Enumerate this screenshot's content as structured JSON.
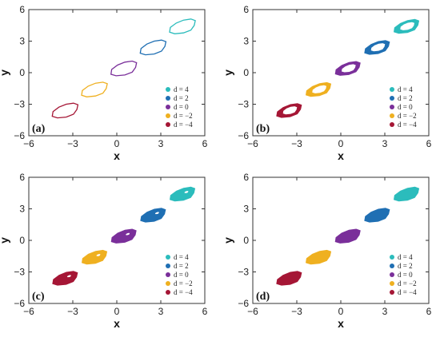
{
  "colors": {
    "d4": "#2bbcbc",
    "d2": "#1f6fb3",
    "d0": "#7a2f9a",
    "dm2": "#efb020",
    "dm4": "#a51635"
  },
  "chart_data": [
    {
      "type": "scatter",
      "panel_label": "(a)",
      "render": "outline",
      "xlabel": "x",
      "ylabel": "y",
      "xlim": [
        -6,
        6
      ],
      "ylim": [
        -6,
        6
      ],
      "xticks": [
        "−6",
        "−3",
        "0",
        "3",
        "6"
      ],
      "yticks": [
        "−6",
        "−3",
        "0",
        "3",
        "6"
      ],
      "legend_position": "bottom-right",
      "series": [
        {
          "name": "d = 4",
          "color_key": "d4",
          "center": [
            4.5,
            4.4
          ]
        },
        {
          "name": "d = 2",
          "color_key": "d2",
          "center": [
            2.5,
            2.4
          ]
        },
        {
          "name": "d = 0",
          "color_key": "d0",
          "center": [
            0.5,
            0.4
          ]
        },
        {
          "name": "d = −2",
          "color_key": "dm2",
          "center": [
            -1.5,
            -1.6
          ]
        },
        {
          "name": "d = −4",
          "color_key": "dm4",
          "center": [
            -3.5,
            -3.6
          ]
        }
      ]
    },
    {
      "type": "scatter",
      "panel_label": "(b)",
      "render": "thick-hole",
      "xlabel": "x",
      "ylabel": "y",
      "xlim": [
        -6,
        6
      ],
      "ylim": [
        -6,
        6
      ],
      "xticks": [
        "−6",
        "−3",
        "0",
        "3",
        "6"
      ],
      "yticks": [
        "−6",
        "−3",
        "0",
        "3",
        "6"
      ],
      "legend_position": "bottom-right",
      "series": [
        {
          "name": "d = 4",
          "color_key": "d4",
          "center": [
            4.5,
            4.4
          ]
        },
        {
          "name": "d = 2",
          "color_key": "d2",
          "center": [
            2.5,
            2.4
          ]
        },
        {
          "name": "d = 0",
          "color_key": "d0",
          "center": [
            0.5,
            0.4
          ]
        },
        {
          "name": "d = −2",
          "color_key": "dm2",
          "center": [
            -1.5,
            -1.6
          ]
        },
        {
          "name": "d = −4",
          "color_key": "dm4",
          "center": [
            -3.5,
            -3.6
          ]
        }
      ]
    },
    {
      "type": "scatter",
      "panel_label": "(c)",
      "render": "filled-small-hole",
      "xlabel": "x",
      "ylabel": "y",
      "xlim": [
        -6,
        6
      ],
      "ylim": [
        -6,
        6
      ],
      "xticks": [
        "−6",
        "−3",
        "0",
        "3",
        "6"
      ],
      "yticks": [
        "−6",
        "−3",
        "0",
        "3",
        "6"
      ],
      "legend_position": "bottom-right",
      "series": [
        {
          "name": "d = 4",
          "color_key": "d4",
          "center": [
            4.5,
            4.4
          ]
        },
        {
          "name": "d = 2",
          "color_key": "d2",
          "center": [
            2.5,
            2.4
          ]
        },
        {
          "name": "d = 0",
          "color_key": "d0",
          "center": [
            0.5,
            0.4
          ]
        },
        {
          "name": "d = −2",
          "color_key": "dm2",
          "center": [
            -1.5,
            -1.6
          ]
        },
        {
          "name": "d = −4",
          "color_key": "dm4",
          "center": [
            -3.5,
            -3.6
          ]
        }
      ]
    },
    {
      "type": "scatter",
      "panel_label": "(d)",
      "render": "filled",
      "xlabel": "x",
      "ylabel": "y",
      "xlim": [
        -6,
        6
      ],
      "ylim": [
        -6,
        6
      ],
      "xticks": [
        "−6",
        "−3",
        "0",
        "3",
        "6"
      ],
      "yticks": [
        "−6",
        "−3",
        "0",
        "3",
        "6"
      ],
      "legend_position": "bottom-right",
      "series": [
        {
          "name": "d = 4",
          "color_key": "d4",
          "center": [
            4.5,
            4.4
          ]
        },
        {
          "name": "d = 2",
          "color_key": "d2",
          "center": [
            2.5,
            2.4
          ]
        },
        {
          "name": "d = 0",
          "color_key": "d0",
          "center": [
            0.5,
            0.4
          ]
        },
        {
          "name": "d = −2",
          "color_key": "dm2",
          "center": [
            -1.5,
            -1.6
          ]
        },
        {
          "name": "d = −4",
          "color_key": "dm4",
          "center": [
            -3.5,
            -3.6
          ]
        }
      ]
    }
  ]
}
